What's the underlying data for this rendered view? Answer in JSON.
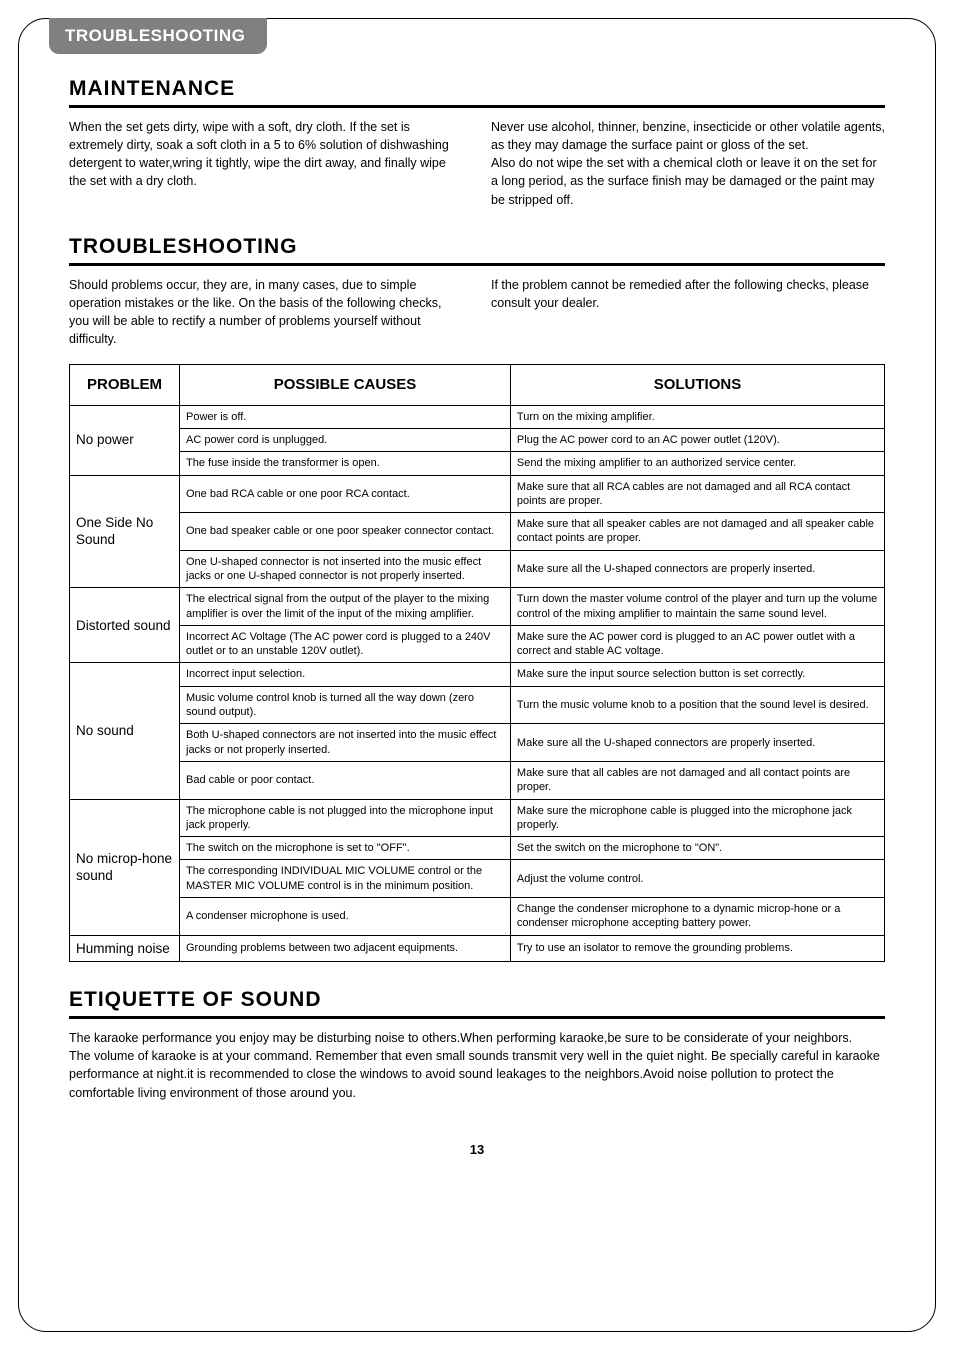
{
  "tab_label": "TROUBLESHOOTING",
  "maintenance": {
    "heading": "MAINTENANCE",
    "left": "When the set gets dirty, wipe with a soft, dry cloth. If the set is extremely dirty, soak a soft cloth in a 5 to 6% solution of dishwashing detergent to water,wring it tightly, wipe the dirt away, and finally wipe the set with a dry cloth.",
    "right": "Never use alcohol, thinner, benzine, insecticide or other volatile agents, as they may damage the surface paint or gloss of the set.\nAlso do not wipe the set with a chemical cloth or leave it on the set for a long period, as the surface finish may be damaged or the paint may be stripped off."
  },
  "troubleshooting": {
    "heading": "TROUBLESHOOTING",
    "left": "Should problems occur, they are, in many cases, due to simple operation mistakes or the like. On the basis of the following checks, you will be able to rectify a number of problems yourself without difficulty.",
    "right": "If the problem cannot be remedied after the following checks, please consult your dealer."
  },
  "table": {
    "headers": {
      "problem": "PROBLEM",
      "causes": "POSSIBLE CAUSES",
      "solutions": "SOLUTIONS"
    },
    "groups": [
      {
        "problem": "No power",
        "rows": [
          {
            "cause": "Power is off.",
            "solution": "Turn on the mixing amplifier."
          },
          {
            "cause": "AC power cord is unplugged.",
            "solution": "Plug the AC power cord to an AC power outlet (120V)."
          },
          {
            "cause": "The fuse inside the transformer is open.",
            "solution": "Send the mixing amplifier to an authorized service center."
          }
        ]
      },
      {
        "problem": "One Side No Sound",
        "rows": [
          {
            "cause": "One bad RCA cable or one poor RCA contact.",
            "solution": "Make sure that all RCA cables are not damaged and all RCA contact points are proper."
          },
          {
            "cause": "One bad speaker cable or one poor speaker connector contact.",
            "solution": "Make sure that all speaker cables are not damaged and all speaker cable contact points are proper."
          },
          {
            "cause": "One U-shaped connector is not inserted into the music effect jacks or one U-shaped connector is not properly inserted.",
            "solution": "Make sure all the U-shaped connectors are properly inserted."
          }
        ]
      },
      {
        "problem": "Distorted sound",
        "rows": [
          {
            "cause": "The electrical signal from the output of the player to the mixing amplifier is over the limit of the input of the mixing amplifier.",
            "solution": "Turn down the master volume control of the player and turn up the volume control of the mixing amplifier to maintain the same sound level."
          },
          {
            "cause": "Incorrect AC Voltage (The AC power cord is plugged to a 240V outlet or to an unstable 120V outlet).",
            "solution": "Make sure the AC power cord is plugged to an AC power outlet with a correct and stable AC voltage."
          }
        ]
      },
      {
        "problem": "No sound",
        "rows": [
          {
            "cause": "Incorrect input selection.",
            "solution": "Make sure the input source selection button is set correctly."
          },
          {
            "cause": "Music volume control knob is turned all the way down (zero sound output).",
            "solution": "Turn the music volume knob to a position that the sound level is desired."
          },
          {
            "cause": "Both U-shaped connectors are not inserted into the music effect jacks or not properly inserted.",
            "solution": "Make sure all the U-shaped connectors are properly inserted."
          },
          {
            "cause": "Bad cable or poor contact.",
            "solution": "Make sure that all cables are not damaged and all contact points are proper."
          }
        ]
      },
      {
        "problem": "No microp-hone sound",
        "rows": [
          {
            "cause": "The microphone cable is not plugged into the microphone input jack properly.",
            "solution": "Make sure the microphone cable is plugged into the microphone jack properly."
          },
          {
            "cause": "The switch on the microphone is set to \"OFF\".",
            "solution": "Set the switch on the microphone to \"ON\"."
          },
          {
            "cause": "The corresponding INDIVIDUAL MIC VOLUME control or the MASTER MIC VOLUME control is in the minimum position.",
            "solution": "Adjust the volume control."
          },
          {
            "cause": "A condenser microphone is used.",
            "solution": "Change the condenser microphone to a dynamic microp-hone or a condenser microphone accepting battery power."
          }
        ]
      },
      {
        "problem": "Humming noise",
        "rows": [
          {
            "cause": "Grounding problems between two adjacent equipments.",
            "solution": "Try to use an isolator to remove the grounding problems."
          }
        ]
      }
    ]
  },
  "etiquette": {
    "heading": "ETIQUETTE OF SOUND",
    "body": "The karaoke performance you enjoy may be disturbing noise to others.When performing karaoke,be sure to be considerate of your neighbors.\nThe volume of karaoke is at your command. Remember that even small sounds transmit very well in the quiet night. Be specially careful in karaoke performance at night.it is recommended to close the windows to avoid sound leakages to the neighbors.Avoid noise pollution to protect the comfortable living environment of those around you.",
    "page_number": "13"
  }
}
